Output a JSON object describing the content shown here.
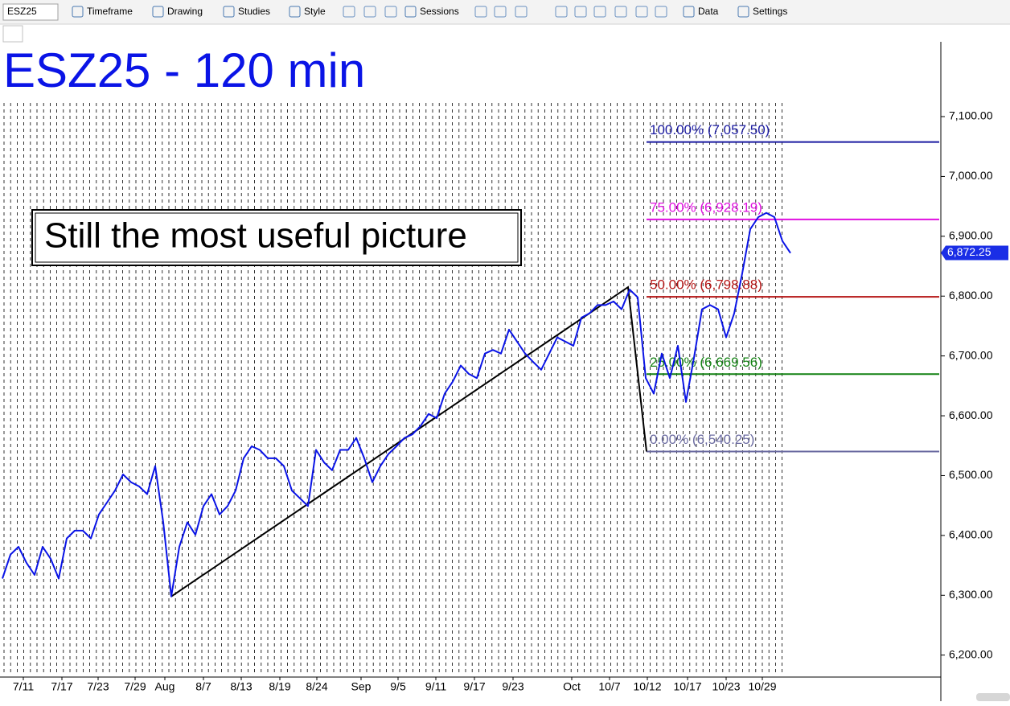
{
  "toolbar": {
    "symbol": "ESZ25",
    "items": [
      "Timeframe",
      "Drawing",
      "Studies",
      "Style",
      "Sessions",
      "Data",
      "Settings"
    ]
  },
  "chart_data": {
    "type": "line",
    "title": "ESZ25 - 120 min",
    "annotation": "Still the most useful picture",
    "color": "#0a14e6",
    "x": [
      0,
      1,
      2,
      3,
      4,
      5,
      6,
      7,
      8,
      9,
      10,
      11,
      12,
      13,
      14,
      15,
      16,
      17,
      18,
      19,
      20,
      21,
      22,
      23,
      24,
      25,
      26,
      27,
      28,
      29,
      30,
      31,
      32,
      33,
      34,
      35,
      36,
      37,
      38,
      39,
      40,
      41,
      42,
      43,
      44,
      45,
      46,
      47,
      48,
      49,
      50,
      51,
      52,
      53,
      54,
      55,
      56,
      57,
      58,
      59,
      60,
      61,
      62,
      63,
      64,
      65,
      66,
      67,
      68,
      69,
      70,
      71,
      72,
      73,
      74,
      75,
      76,
      77,
      78,
      79,
      80,
      81,
      82,
      83,
      84,
      85,
      86,
      87,
      88,
      89,
      90,
      91,
      92,
      93,
      94,
      95,
      96,
      97,
      98
    ],
    "values": [
      6328,
      6368,
      6381,
      6354,
      6334,
      6381,
      6361,
      6328,
      6395,
      6408,
      6408,
      6395,
      6435,
      6455,
      6475,
      6502,
      6489,
      6482,
      6469,
      6516,
      6422,
      6298,
      6381,
      6422,
      6401,
      6449,
      6469,
      6435,
      6449,
      6475,
      6529,
      6549,
      6543,
      6529,
      6529,
      6516,
      6475,
      6462,
      6449,
      6543,
      6522,
      6509,
      6543,
      6543,
      6563,
      6529,
      6489,
      6516,
      6536,
      6549,
      6563,
      6569,
      6583,
      6603,
      6596,
      6637,
      6657,
      6684,
      6670,
      6663,
      6704,
      6710,
      6704,
      6744,
      6724,
      6704,
      6690,
      6677,
      6704,
      6731,
      6724,
      6717,
      6764,
      6771,
      6785,
      6785,
      6791,
      6778,
      6811,
      6798,
      6663,
      6637,
      6704,
      6663,
      6717,
      6623,
      6697,
      6778,
      6785,
      6778,
      6731,
      6771,
      6838,
      6912,
      6932,
      6939,
      6932,
      6892,
      6872
    ],
    "xlim": [
      -0.3,
      116.5
    ],
    "ylim": [
      6166,
      7225
    ],
    "xticks": [
      {
        "value": 2.6,
        "label": "7/11"
      },
      {
        "value": 7.4,
        "label": "7/17"
      },
      {
        "value": 11.9,
        "label": "7/23"
      },
      {
        "value": 16.5,
        "label": "7/29"
      },
      {
        "value": 20.2,
        "label": "Aug"
      },
      {
        "value": 25,
        "label": "8/7"
      },
      {
        "value": 29.7,
        "label": "8/13"
      },
      {
        "value": 34.5,
        "label": "8/19"
      },
      {
        "value": 39.1,
        "label": "8/24"
      },
      {
        "value": 44.6,
        "label": "Sep"
      },
      {
        "value": 49.2,
        "label": "9/5"
      },
      {
        "value": 53.9,
        "label": "9/11"
      },
      {
        "value": 58.7,
        "label": "9/17"
      },
      {
        "value": 63.5,
        "label": "9/23"
      },
      {
        "value": 70.8,
        "label": "Oct"
      },
      {
        "value": 75.5,
        "label": "10/7"
      },
      {
        "value": 80.2,
        "label": "10/12"
      },
      {
        "value": 85.2,
        "label": "10/17"
      },
      {
        "value": 90,
        "label": "10/23"
      },
      {
        "value": 94.5,
        "label": "10/29"
      }
    ],
    "yticks": [
      {
        "value": 6200,
        "label": "6,200.00"
      },
      {
        "value": 6300,
        "label": "6,300.00"
      },
      {
        "value": 6400,
        "label": "6,400.00"
      },
      {
        "value": 6500,
        "label": "6,500.00"
      },
      {
        "value": 6600,
        "label": "6,600.00"
      },
      {
        "value": 6700,
        "label": "6,700.00"
      },
      {
        "value": 6800,
        "label": "6,800.00"
      },
      {
        "value": 6900,
        "label": "6,900.00"
      },
      {
        "value": 7000,
        "label": "7,000.00"
      },
      {
        "value": 7100,
        "label": "7,100.00"
      }
    ],
    "last_price": {
      "value": 6872.25,
      "label": "6,872.25"
    },
    "trendline": {
      "x": [
        21,
        77.8,
        80.1
      ],
      "values": [
        6298,
        6815,
        6540.25
      ]
    },
    "fibonacci": {
      "x_start": 80.1,
      "levels": [
        {
          "label": "100.00% (7,057.50)",
          "value": 7057.5,
          "color": "#1a1aa0"
        },
        {
          "label": "75.00% (6,928.19)",
          "value": 6928.19,
          "color": "#e010e0"
        },
        {
          "label": "50.00% (6,798.88)",
          "value": 6798.88,
          "color": "#b41414"
        },
        {
          "label": "25.00% (6,669.56)",
          "value": 6669.56,
          "color": "#148214"
        },
        {
          "label": "0.00% (6,540.25)",
          "value": 6540.25,
          "color": "#6a6aa0"
        }
      ]
    }
  }
}
